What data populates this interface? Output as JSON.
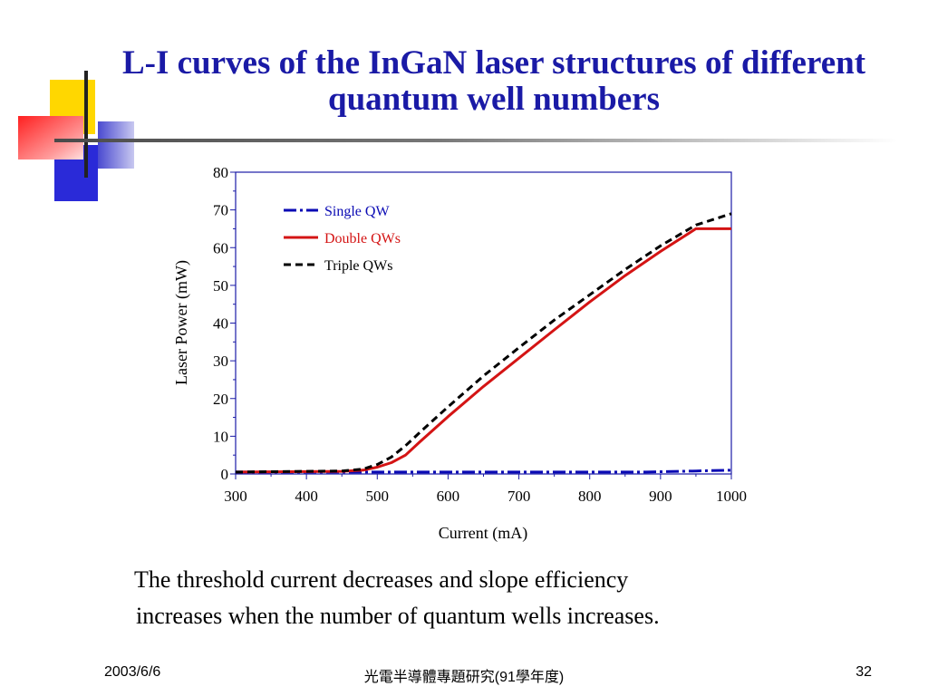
{
  "slide": {
    "title": "L-I curves of the InGaN laser structures of different quantum well numbers",
    "caption_line1": "The threshold current decreases and slope efficiency",
    "caption_line2": "increases when the number of quantum wells increases.",
    "footer_date": "2003/6/6",
    "footer_center": "光電半導體專題研究(91學年度)",
    "page_number": "32",
    "colors": {
      "title": "#1a1aa6",
      "deco_yellow": "#ffd700",
      "deco_red": "#ff3030",
      "deco_blue": "#2a2ad8"
    }
  },
  "chart_data": {
    "type": "line",
    "title": "",
    "xlabel": "Current (mA)",
    "ylabel": "Laser  Power (mW)",
    "xlim": [
      300,
      1000
    ],
    "ylim": [
      0,
      80
    ],
    "x_ticks": [
      300,
      400,
      500,
      600,
      700,
      800,
      900,
      1000
    ],
    "y_ticks": [
      0,
      10,
      20,
      30,
      40,
      50,
      60,
      70,
      80
    ],
    "grid": false,
    "legend_position": "top-left",
    "series": [
      {
        "name": "Single QW",
        "color": "#0a0ab4",
        "dash": "dash-dot",
        "x": [
          300,
          400,
          500,
          600,
          700,
          800,
          880,
          900,
          950,
          1000
        ],
        "y": [
          0.5,
          0.5,
          0.5,
          0.5,
          0.5,
          0.5,
          0.5,
          0.6,
          0.8,
          1.0
        ]
      },
      {
        "name": "Double QWs",
        "color": "#d41414",
        "dash": "solid",
        "x": [
          300,
          450,
          480,
          500,
          520,
          540,
          560,
          600,
          650,
          700,
          750,
          800,
          850,
          900,
          950,
          1000
        ],
        "y": [
          0.5,
          0.7,
          1.0,
          1.8,
          3.0,
          5.0,
          8.5,
          15.2,
          23.2,
          30.7,
          38.2,
          45.6,
          52.6,
          59.0,
          65.0,
          65.0
        ]
      },
      {
        "name": "Triple QWs",
        "color": "#000000",
        "dash": "dashed",
        "x": [
          300,
          450,
          480,
          500,
          520,
          540,
          560,
          600,
          650,
          700,
          750,
          800,
          850,
          900,
          950,
          1000
        ],
        "y": [
          0.5,
          0.8,
          1.3,
          2.5,
          4.5,
          7.5,
          11.0,
          17.8,
          26.0,
          33.5,
          40.8,
          47.5,
          54.2,
          60.5,
          66.0,
          69.0
        ]
      }
    ]
  }
}
